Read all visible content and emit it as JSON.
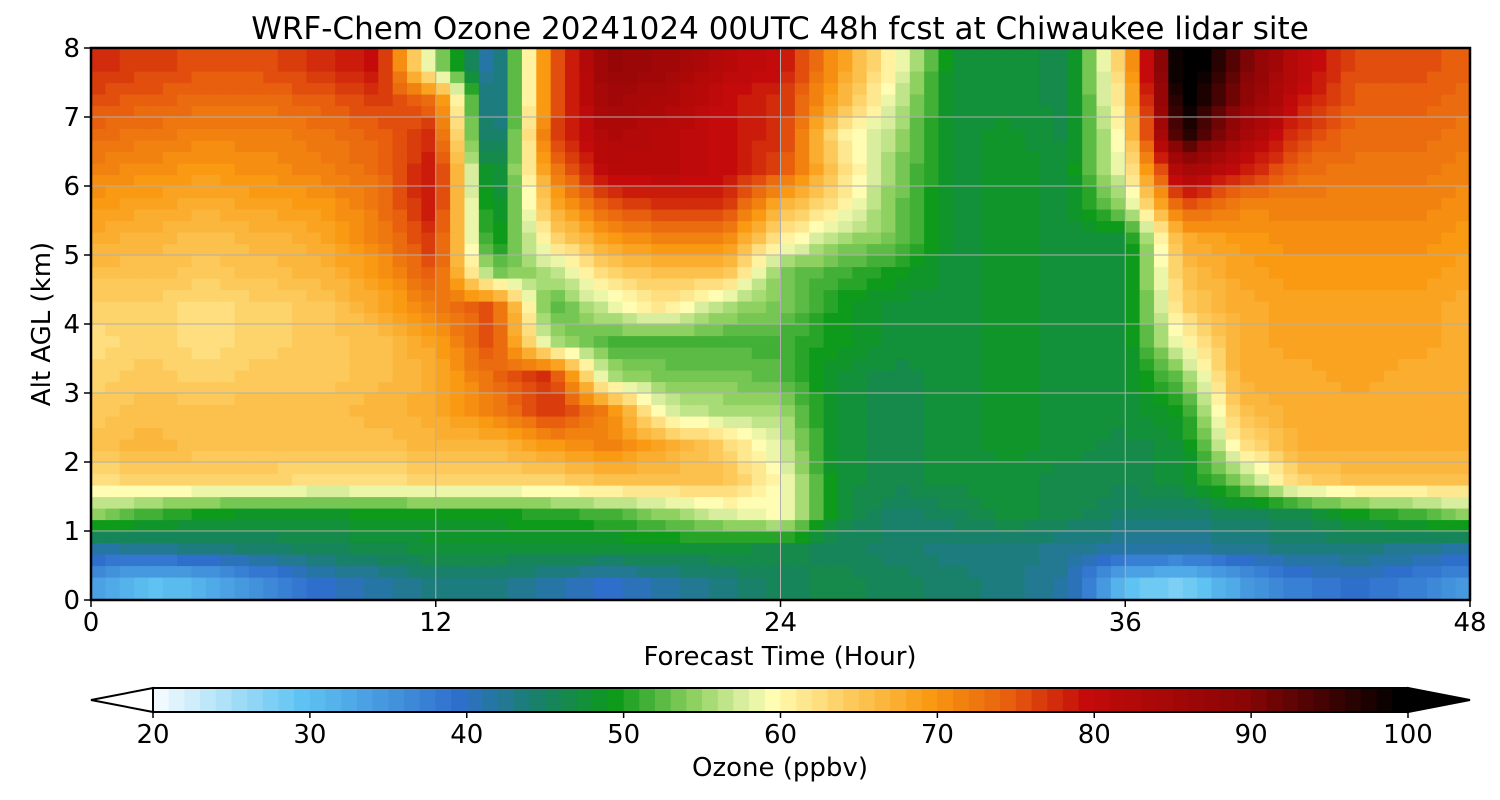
{
  "chart_data": {
    "type": "heatmap",
    "title": "WRF-Chem Ozone  20241024 00UTC 48h fcst at Chiwaukee lidar site",
    "xlabel": "Forecast Time (Hour)",
    "ylabel": "Alt AGL (km)",
    "xlim": [
      0,
      48
    ],
    "ylim": [
      0,
      8
    ],
    "xticks": [
      "0",
      "12",
      "24",
      "36",
      "48"
    ],
    "yticks": [
      "0",
      "1",
      "2",
      "3",
      "4",
      "5",
      "6",
      "7",
      "8"
    ],
    "grid": true,
    "x_hours": [
      0,
      2,
      4,
      6,
      8,
      10,
      12,
      14,
      16,
      18,
      20,
      22,
      24,
      26,
      28,
      30,
      32,
      34,
      36,
      38,
      40,
      42,
      44,
      46,
      48
    ],
    "y_km": [
      0.25,
      0.75,
      1.25,
      1.75,
      2.25,
      2.75,
      3.25,
      3.75,
      4.25,
      4.75,
      5.25,
      5.75,
      6.25,
      6.75,
      7.25,
      7.75
    ],
    "ozone_ppbv": [
      [
        35,
        30,
        32,
        36,
        40,
        42,
        44,
        44,
        42,
        40,
        42,
        44,
        46,
        47,
        46,
        45,
        44,
        42,
        30,
        28,
        34,
        38,
        40,
        38,
        35
      ],
      [
        42,
        43,
        44,
        45,
        46,
        47,
        48,
        48,
        48,
        48,
        48,
        48,
        47,
        46,
        45,
        44,
        44,
        43,
        42,
        42,
        43,
        44,
        44,
        43,
        42
      ],
      [
        55,
        52,
        50,
        49,
        49,
        50,
        50,
        50,
        51,
        52,
        55,
        58,
        60,
        48,
        45,
        46,
        48,
        47,
        45,
        45,
        46,
        47,
        50,
        52,
        55
      ],
      [
        63,
        64,
        64,
        64,
        63,
        63,
        64,
        64,
        64,
        66,
        66,
        66,
        60,
        48,
        47,
        48,
        48,
        47,
        47,
        48,
        55,
        64,
        66,
        66,
        66
      ],
      [
        66,
        67,
        66,
        66,
        66,
        66,
        67,
        67,
        70,
        72,
        68,
        64,
        58,
        48,
        47,
        48,
        49,
        48,
        47,
        48,
        62,
        68,
        68,
        68,
        68
      ],
      [
        65,
        66,
        66,
        66,
        66,
        67,
        68,
        72,
        78,
        72,
        58,
        56,
        56,
        48,
        47,
        48,
        49,
        48,
        48,
        50,
        66,
        68,
        68,
        68,
        68
      ],
      [
        64,
        65,
        64,
        65,
        65,
        66,
        68,
        74,
        78,
        56,
        54,
        54,
        53,
        48,
        47,
        48,
        49,
        48,
        48,
        54,
        68,
        68,
        69,
        68,
        68
      ],
      [
        63,
        64,
        63,
        64,
        65,
        66,
        69,
        77,
        56,
        52,
        52,
        52,
        52,
        50,
        48,
        48,
        49,
        48,
        48,
        60,
        68,
        69,
        69,
        69,
        68
      ],
      [
        64,
        64,
        63,
        64,
        65,
        68,
        72,
        76,
        52,
        58,
        62,
        56,
        54,
        50,
        48,
        48,
        49,
        48,
        48,
        64,
        68,
        69,
        69,
        69,
        68
      ],
      [
        66,
        66,
        65,
        66,
        67,
        70,
        76,
        54,
        56,
        64,
        66,
        66,
        54,
        52,
        50,
        48,
        49,
        48,
        48,
        66,
        69,
        70,
        70,
        70,
        69
      ],
      [
        68,
        67,
        66,
        67,
        68,
        72,
        78,
        48,
        63,
        70,
        72,
        72,
        62,
        56,
        54,
        48,
        49,
        48,
        48,
        68,
        70,
        71,
        71,
        71,
        70
      ],
      [
        70,
        69,
        68,
        69,
        70,
        73,
        80,
        46,
        68,
        76,
        78,
        78,
        68,
        62,
        54,
        48,
        49,
        48,
        56,
        76,
        72,
        72,
        72,
        72,
        71
      ],
      [
        72,
        71,
        70,
        71,
        72,
        74,
        80,
        44,
        72,
        82,
        82,
        80,
        76,
        64,
        55,
        48,
        49,
        48,
        60,
        86,
        80,
        74,
        73,
        73,
        72
      ],
      [
        74,
        73,
        72,
        72,
        73,
        75,
        78,
        40,
        76,
        84,
        82,
        80,
        78,
        62,
        56,
        48,
        49,
        47,
        62,
        98,
        86,
        77,
        74,
        74,
        73
      ],
      [
        76,
        75,
        74,
        74,
        75,
        77,
        74,
        40,
        74,
        86,
        84,
        80,
        78,
        68,
        58,
        48,
        48,
        47,
        64,
        102,
        90,
        80,
        75,
        75,
        74
      ],
      [
        78,
        77,
        76,
        76,
        78,
        80,
        56,
        40,
        74,
        88,
        86,
        82,
        80,
        70,
        60,
        48,
        48,
        47,
        66,
        104,
        92,
        82,
        76,
        76,
        75
      ]
    ],
    "colorbar": {
      "label": "Ozone  (ppbv)",
      "min": 20,
      "max": 100,
      "step": 1,
      "extend": "both",
      "ticks": [
        "20",
        "30",
        "40",
        "50",
        "60",
        "70",
        "80",
        "90",
        "100"
      ],
      "color_stops": [
        {
          "v": 20,
          "c": "#ffffff"
        },
        {
          "v": 30,
          "c": "#5ec3f2"
        },
        {
          "v": 40,
          "c": "#2f6fcc"
        },
        {
          "v": 45,
          "c": "#19806a"
        },
        {
          "v": 50,
          "c": "#0e9a1a"
        },
        {
          "v": 55,
          "c": "#8fd160"
        },
        {
          "v": 58,
          "c": "#d8ee9e"
        },
        {
          "v": 60,
          "c": "#fffdb3"
        },
        {
          "v": 65,
          "c": "#fdc95a"
        },
        {
          "v": 70,
          "c": "#f99a12"
        },
        {
          "v": 75,
          "c": "#e85f0e"
        },
        {
          "v": 80,
          "c": "#c40a0a"
        },
        {
          "v": 90,
          "c": "#8a0505"
        },
        {
          "v": 100,
          "c": "#000000"
        }
      ]
    }
  }
}
